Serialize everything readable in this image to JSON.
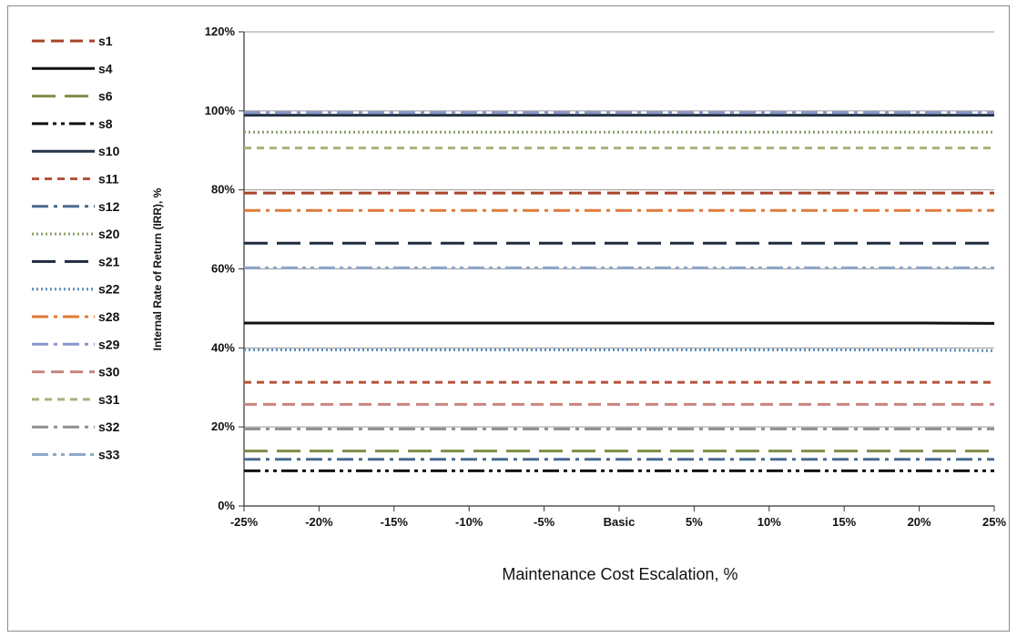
{
  "chart_data": {
    "type": "line",
    "xlabel": "Maintenance Cost Escalation, %",
    "ylabel": "Internal Rate of Return (IRR), %",
    "categories": [
      "-25%",
      "-20%",
      "-15%",
      "-10%",
      "-5%",
      "Basic",
      "5%",
      "10%",
      "15%",
      "20%",
      "25%"
    ],
    "ylim": [
      0,
      120
    ],
    "yticks": [
      "0%",
      "20%",
      "40%",
      "60%",
      "80%",
      "100%",
      "120%"
    ],
    "ytick_values": [
      0,
      20,
      40,
      60,
      80,
      100,
      120
    ],
    "grid": "horizontal",
    "legend_position": "left",
    "series": [
      {
        "name": "s1",
        "color": "#a8432a",
        "dash": "dash",
        "values": [
          79.2,
          79.2,
          79.2,
          79.2,
          79.2,
          79.2,
          79.2,
          79.2,
          79.2,
          79.2,
          79.2
        ]
      },
      {
        "name": "s4",
        "color": "#111111",
        "dash": "solid",
        "values": [
          46.3,
          46.3,
          46.3,
          46.3,
          46.3,
          46.3,
          46.3,
          46.3,
          46.3,
          46.3,
          46.2
        ]
      },
      {
        "name": "s6",
        "color": "#7c8f45",
        "dash": "longdash",
        "values": [
          13.9,
          13.9,
          13.9,
          13.9,
          13.9,
          13.9,
          13.9,
          13.9,
          13.9,
          13.9,
          13.9
        ]
      },
      {
        "name": "s8",
        "color": "#111111",
        "dash": "dashdotdot",
        "values": [
          8.9,
          8.9,
          8.9,
          8.9,
          8.9,
          8.9,
          8.9,
          8.9,
          8.9,
          8.9,
          8.9
        ]
      },
      {
        "name": "s10",
        "color": "#223344",
        "dash": "solid",
        "values": [
          98.9,
          98.9,
          98.9,
          98.9,
          98.9,
          98.9,
          98.9,
          98.9,
          98.9,
          98.9,
          98.9
        ]
      },
      {
        "name": "s11",
        "color": "#b4533a",
        "dash": "shortdash",
        "values": [
          31.3,
          31.3,
          31.3,
          31.3,
          31.3,
          31.3,
          31.3,
          31.3,
          31.3,
          31.3,
          31.3
        ]
      },
      {
        "name": "s12",
        "color": "#4a6a92",
        "dash": "dashdot",
        "values": [
          11.8,
          11.8,
          11.8,
          11.8,
          11.8,
          11.8,
          11.8,
          11.8,
          11.8,
          11.8,
          11.8
        ]
      },
      {
        "name": "s20",
        "color": "#8aa06a",
        "dash": "dot",
        "values": [
          94.6,
          94.6,
          94.6,
          94.6,
          94.6,
          94.6,
          94.6,
          94.6,
          94.6,
          94.6,
          94.6
        ]
      },
      {
        "name": "s21",
        "color": "#1e2a3e",
        "dash": "longdash",
        "values": [
          66.5,
          66.5,
          66.5,
          66.5,
          66.5,
          66.5,
          66.5,
          66.5,
          66.5,
          66.5,
          66.5
        ]
      },
      {
        "name": "s22",
        "color": "#5b8fc0",
        "dash": "dot",
        "values": [
          39.5,
          39.5,
          39.5,
          39.5,
          39.5,
          39.5,
          39.5,
          39.5,
          39.5,
          39.5,
          39.3
        ]
      },
      {
        "name": "s28",
        "color": "#e07a3a",
        "dash": "dashdot",
        "values": [
          74.8,
          74.8,
          74.8,
          74.8,
          74.8,
          74.8,
          74.8,
          74.8,
          74.8,
          74.8,
          74.8
        ]
      },
      {
        "name": "s29",
        "color": "#8a96c8",
        "dash": "dashdot",
        "values": [
          99.6,
          99.6,
          99.6,
          99.6,
          99.6,
          99.6,
          99.6,
          99.6,
          99.6,
          99.6,
          99.6
        ]
      },
      {
        "name": "s30",
        "color": "#c8857e",
        "dash": "dash",
        "values": [
          25.7,
          25.7,
          25.7,
          25.7,
          25.7,
          25.7,
          25.7,
          25.7,
          25.7,
          25.7,
          25.7
        ]
      },
      {
        "name": "s31",
        "color": "#a6b27a",
        "dash": "shortdash",
        "values": [
          90.6,
          90.6,
          90.6,
          90.6,
          90.6,
          90.6,
          90.6,
          90.6,
          90.6,
          90.6,
          90.6
        ]
      },
      {
        "name": "s32",
        "color": "#8f8f8f",
        "dash": "dashdot",
        "values": [
          19.5,
          19.5,
          19.5,
          19.5,
          19.5,
          19.5,
          19.5,
          19.5,
          19.5,
          19.5,
          19.5
        ]
      },
      {
        "name": "s33",
        "color": "#8fa8c8",
        "dash": "dashdotdot",
        "values": [
          60.3,
          60.3,
          60.3,
          60.3,
          60.3,
          60.3,
          60.3,
          60.3,
          60.3,
          60.3,
          60.3
        ]
      }
    ]
  }
}
